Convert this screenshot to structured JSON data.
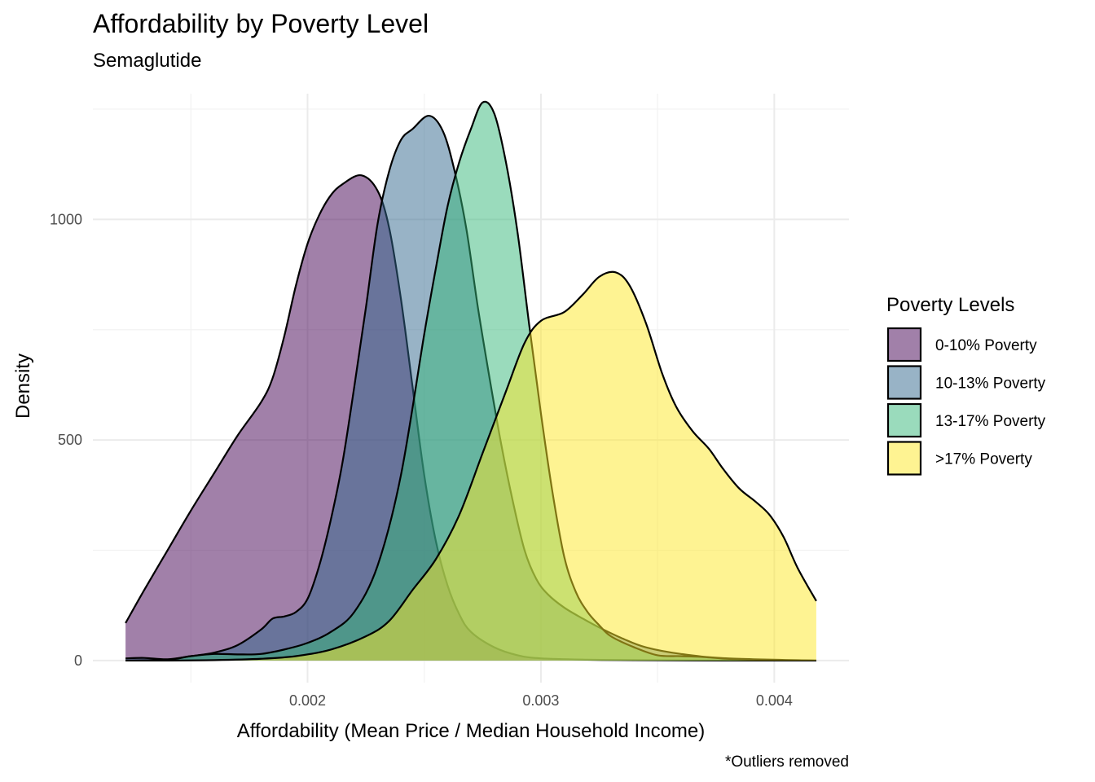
{
  "chart_data": {
    "type": "area",
    "title": "Affordability by Poverty Level",
    "subtitle": "Semaglutide",
    "xlabel": "Affordability (Mean Price / Median Household Income)",
    "ylabel": "Density",
    "caption": "*Outliers removed",
    "xlim": [
      0.00108,
      0.00432
    ],
    "ylim": [
      -50,
      1285
    ],
    "x_ticks": [
      0.002,
      0.003,
      0.004
    ],
    "x_tick_labels": [
      "0.002",
      "0.003",
      "0.004"
    ],
    "x_minor_ticks": [
      0.0015,
      0.0025,
      0.0035
    ],
    "y_ticks": [
      0,
      500,
      1000
    ],
    "y_tick_labels": [
      "0",
      "500",
      "1000"
    ],
    "y_minor_ticks": [
      250,
      750,
      1250
    ],
    "grid": true,
    "fill_opacity": 0.5,
    "legend": {
      "title": "Poverty Levels",
      "position": "right"
    },
    "series": [
      {
        "name": "0-10% Poverty",
        "color": "#440154",
        "points": [
          [
            0.00122,
            85
          ],
          [
            0.0013,
            160
          ],
          [
            0.0014,
            250
          ],
          [
            0.0015,
            340
          ],
          [
            0.0016,
            425
          ],
          [
            0.0017,
            510
          ],
          [
            0.0018,
            585
          ],
          [
            0.00185,
            640
          ],
          [
            0.0019,
            735
          ],
          [
            0.00195,
            850
          ],
          [
            0.002,
            945
          ],
          [
            0.00205,
            1010
          ],
          [
            0.0021,
            1055
          ],
          [
            0.00215,
            1080
          ],
          [
            0.00223,
            1100
          ],
          [
            0.0023,
            1065
          ],
          [
            0.00235,
            980
          ],
          [
            0.0024,
            820
          ],
          [
            0.00245,
            620
          ],
          [
            0.0025,
            420
          ],
          [
            0.00255,
            270
          ],
          [
            0.0026,
            170
          ],
          [
            0.00265,
            105
          ],
          [
            0.0027,
            65
          ],
          [
            0.0028,
            30
          ],
          [
            0.0029,
            12
          ],
          [
            0.003,
            5
          ],
          [
            0.0032,
            2
          ],
          [
            0.0034,
            1
          ],
          [
            0.0038,
            0
          ],
          [
            0.00418,
            0
          ]
        ]
      },
      {
        "name": "10-13% Poverty",
        "color": "#31688e",
        "points": [
          [
            0.00122,
            5
          ],
          [
            0.0013,
            6
          ],
          [
            0.0014,
            3
          ],
          [
            0.0015,
            10
          ],
          [
            0.0016,
            18
          ],
          [
            0.0017,
            35
          ],
          [
            0.0018,
            70
          ],
          [
            0.00185,
            95
          ],
          [
            0.0019,
            100
          ],
          [
            0.00195,
            110
          ],
          [
            0.002,
            140
          ],
          [
            0.00205,
            215
          ],
          [
            0.0021,
            320
          ],
          [
            0.00215,
            450
          ],
          [
            0.0022,
            620
          ],
          [
            0.00225,
            800
          ],
          [
            0.0023,
            990
          ],
          [
            0.00235,
            1110
          ],
          [
            0.0024,
            1180
          ],
          [
            0.00245,
            1205
          ],
          [
            0.00252,
            1235
          ],
          [
            0.00258,
            1200
          ],
          [
            0.00263,
            1110
          ],
          [
            0.00268,
            980
          ],
          [
            0.00273,
            800
          ],
          [
            0.00278,
            640
          ],
          [
            0.00283,
            490
          ],
          [
            0.00288,
            360
          ],
          [
            0.00293,
            250
          ],
          [
            0.00298,
            185
          ],
          [
            0.00303,
            150
          ],
          [
            0.0031,
            120
          ],
          [
            0.00318,
            95
          ],
          [
            0.00325,
            75
          ],
          [
            0.00335,
            50
          ],
          [
            0.00345,
            30
          ],
          [
            0.0036,
            15
          ],
          [
            0.0038,
            5
          ],
          [
            0.00418,
            0
          ]
        ]
      },
      {
        "name": "13-17% Poverty",
        "color": "#35b779",
        "points": [
          [
            0.00122,
            0
          ],
          [
            0.0014,
            2
          ],
          [
            0.0015,
            10
          ],
          [
            0.0016,
            15
          ],
          [
            0.0017,
            14
          ],
          [
            0.0018,
            15
          ],
          [
            0.0019,
            25
          ],
          [
            0.002,
            40
          ],
          [
            0.0021,
            65
          ],
          [
            0.0022,
            110
          ],
          [
            0.0023,
            215
          ],
          [
            0.0024,
            420
          ],
          [
            0.0025,
            740
          ],
          [
            0.00255,
            890
          ],
          [
            0.0026,
            1030
          ],
          [
            0.00265,
            1130
          ],
          [
            0.0027,
            1205
          ],
          [
            0.00275,
            1265
          ],
          [
            0.0028,
            1240
          ],
          [
            0.00285,
            1130
          ],
          [
            0.0029,
            970
          ],
          [
            0.00295,
            760
          ],
          [
            0.003,
            560
          ],
          [
            0.00305,
            380
          ],
          [
            0.0031,
            235
          ],
          [
            0.00315,
            155
          ],
          [
            0.0032,
            110
          ],
          [
            0.00325,
            80
          ],
          [
            0.0033,
            55
          ],
          [
            0.0034,
            30
          ],
          [
            0.0035,
            12
          ],
          [
            0.0036,
            10
          ],
          [
            0.0037,
            8
          ],
          [
            0.0038,
            4
          ],
          [
            0.004,
            1
          ],
          [
            0.00418,
            0
          ]
        ]
      },
      {
        "name": ">17% Poverty",
        "color": "#fde725",
        "points": [
          [
            0.00122,
            0
          ],
          [
            0.0014,
            0
          ],
          [
            0.0016,
            1
          ],
          [
            0.0018,
            4
          ],
          [
            0.00195,
            10
          ],
          [
            0.0021,
            25
          ],
          [
            0.00225,
            55
          ],
          [
            0.00235,
            90
          ],
          [
            0.00245,
            160
          ],
          [
            0.00255,
            230
          ],
          [
            0.00265,
            330
          ],
          [
            0.00275,
            470
          ],
          [
            0.00285,
            610
          ],
          [
            0.00293,
            720
          ],
          [
            0.003,
            770
          ],
          [
            0.0031,
            790
          ],
          [
            0.00318,
            830
          ],
          [
            0.00325,
            870
          ],
          [
            0.00332,
            880
          ],
          [
            0.00338,
            850
          ],
          [
            0.00345,
            765
          ],
          [
            0.00352,
            650
          ],
          [
            0.00358,
            575
          ],
          [
            0.00365,
            520
          ],
          [
            0.00372,
            480
          ],
          [
            0.00378,
            435
          ],
          [
            0.00385,
            390
          ],
          [
            0.00392,
            360
          ],
          [
            0.00398,
            330
          ],
          [
            0.00404,
            280
          ],
          [
            0.0041,
            210
          ],
          [
            0.00418,
            135
          ]
        ]
      }
    ]
  }
}
